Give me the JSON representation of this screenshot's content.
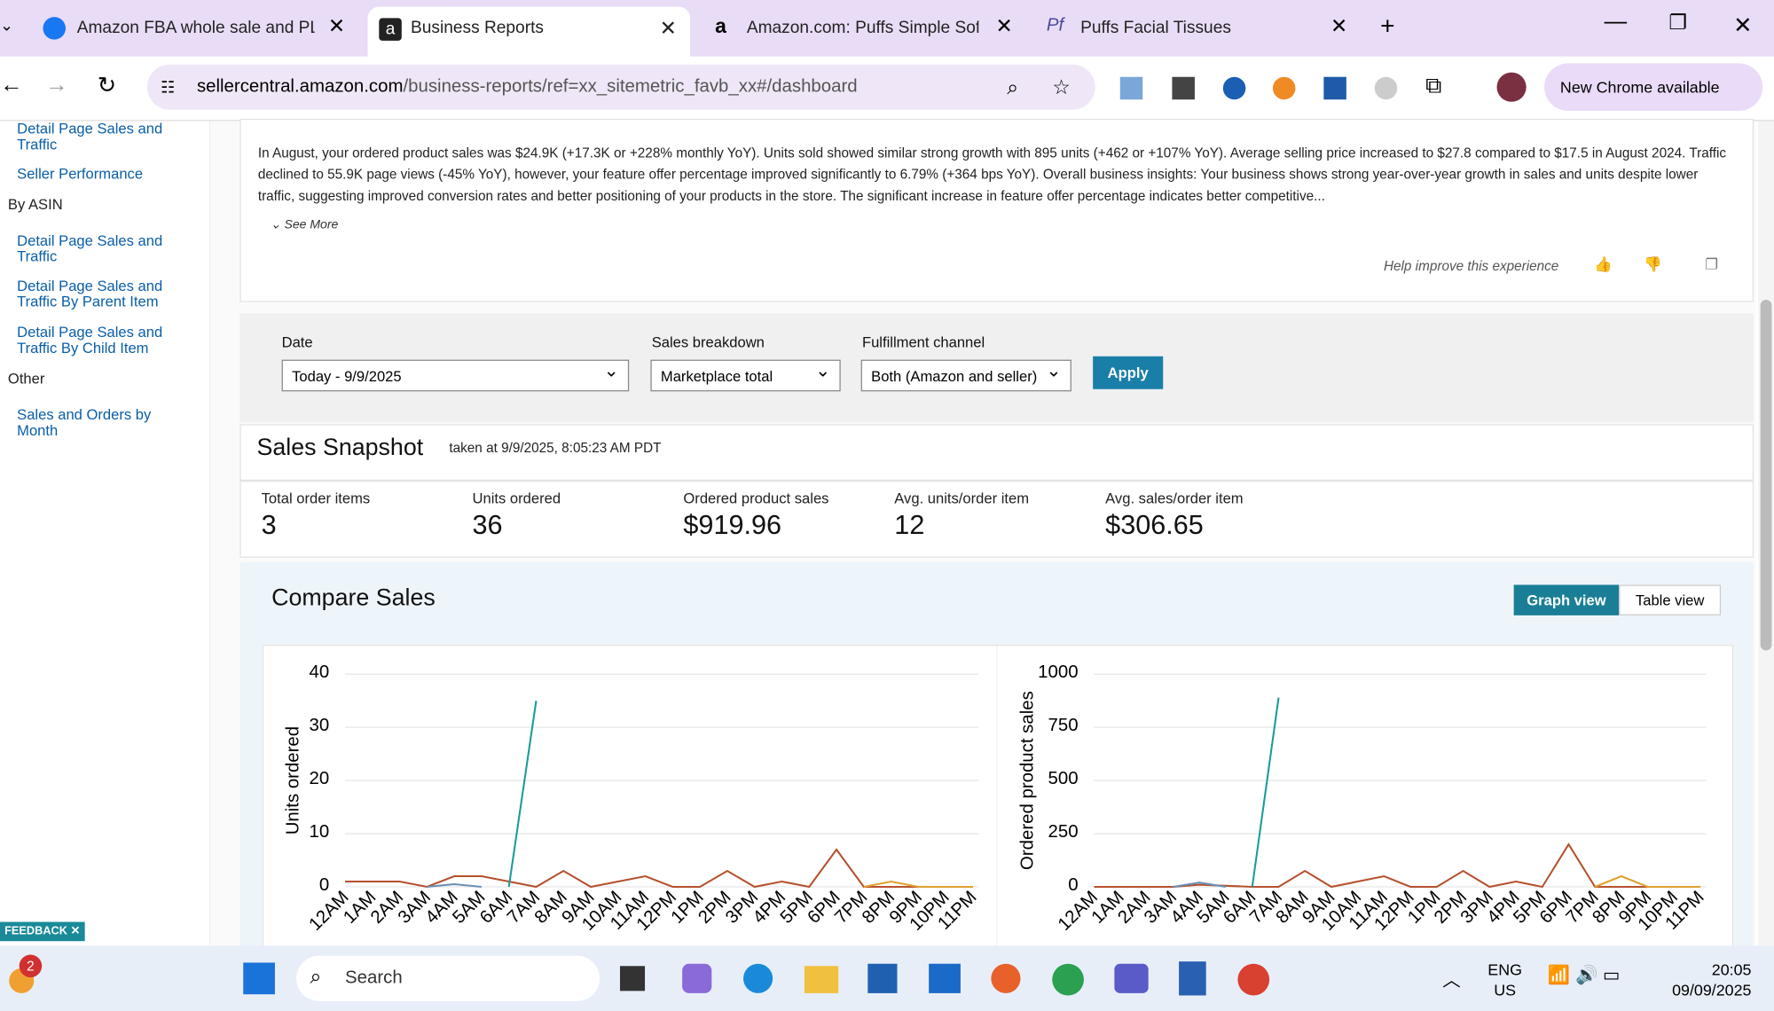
{
  "browser": {
    "tabs": [
      "Amazon FBA whole sale and PL",
      "Business Reports",
      "Amazon.com: Puffs Simple Sof",
      "Puffs Facial Tissues"
    ],
    "url_host": "sellercentral.amazon.com",
    "url_path": "/business-reports/ref=xx_sitemetric_favb_xx#/dashboard",
    "update": "New Chrome available"
  },
  "sidebar": {
    "top_items": [
      "Detail Page Sales and Traffic",
      "Seller Performance"
    ],
    "by_asin": "By ASIN",
    "asin_items": [
      "Detail Page Sales and Traffic",
      "Detail Page Sales and Traffic By Parent Item",
      "Detail Page Sales and Traffic By Child Item"
    ],
    "other": "Other",
    "other_items": [
      "Sales and Orders by Month"
    ]
  },
  "insights": {
    "text": "In August, your ordered product sales was $24.9K (+17.3K or +228% monthly YoY). Units sold showed similar strong growth with 895 units (+462 or +107% YoY). Average selling price increased to $27.8 compared to $17.5 in August 2024. Traffic declined to 55.9K page views (-45% YoY), however, your feature offer percentage improved significantly to 6.79% (+364 bps YoY). Overall business insights: Your business shows strong year-over-year growth in sales and units despite lower traffic, suggesting improved conversion rates and better positioning of your products in the store. The significant increase in feature offer percentage indicates better competitive...",
    "see_more": "See More",
    "feedback_prompt": "Help improve this experience"
  },
  "filters": {
    "date_label": "Date",
    "date_value": "Today - 9/9/2025",
    "breakdown_label": "Sales breakdown",
    "breakdown_value": "Marketplace total",
    "channel_label": "Fulfillment channel",
    "channel_value": "Both (Amazon and seller)",
    "apply": "Apply"
  },
  "snapshot": {
    "title": "Sales Snapshot",
    "taken": "taken at 9/9/2025, 8:05:23 AM PDT",
    "metrics": [
      {
        "label": "Total order items",
        "value": "3"
      },
      {
        "label": "Units ordered",
        "value": "36"
      },
      {
        "label": "Ordered product sales",
        "value": "$919.96"
      },
      {
        "label": "Avg. units/order item",
        "value": "12"
      },
      {
        "label": "Avg. sales/order item",
        "value": "$306.65"
      }
    ]
  },
  "compare": {
    "title": "Compare Sales",
    "views": [
      "Graph view",
      "Table view"
    ]
  },
  "chart_data": [
    {
      "type": "line",
      "ylabel": "Units ordered",
      "grid": true,
      "categories": [
        "12AM",
        "1AM",
        "2AM",
        "3AM",
        "4AM",
        "5AM",
        "6AM",
        "7AM",
        "8AM",
        "9AM",
        "10AM",
        "11AM",
        "12PM",
        "1PM",
        "2PM",
        "3PM",
        "4PM",
        "5PM",
        "6PM",
        "7PM",
        "8PM",
        "9PM",
        "10PM",
        "11PM"
      ],
      "ylim": [
        0,
        40
      ],
      "yticks": [
        0,
        10,
        20,
        30,
        40
      ],
      "series": [
        {
          "color": "#b5502c",
          "values": [
            1,
            1,
            1,
            0,
            2,
            2,
            1,
            0,
            3,
            0,
            1,
            2,
            0,
            0,
            3,
            0,
            1,
            0,
            7,
            0,
            0,
            0,
            0,
            0
          ]
        },
        {
          "color": "#e0a030",
          "values": [
            null,
            null,
            null,
            null,
            null,
            null,
            null,
            null,
            null,
            null,
            null,
            null,
            null,
            null,
            null,
            null,
            null,
            null,
            null,
            0,
            1,
            0,
            0,
            0
          ]
        },
        {
          "color": "#6a8fb5",
          "values": [
            null,
            null,
            null,
            0,
            0.5,
            0,
            null,
            null,
            null,
            null,
            null,
            null,
            null,
            null,
            null,
            null,
            null,
            null,
            null,
            null,
            null,
            null,
            null,
            null
          ]
        },
        {
          "color": "#1a9a9a",
          "values": [
            null,
            null,
            null,
            null,
            null,
            null,
            0,
            35,
            null,
            null,
            null,
            null,
            null,
            null,
            null,
            null,
            null,
            null,
            null,
            null,
            null,
            null,
            null,
            null
          ]
        }
      ]
    },
    {
      "type": "line",
      "ylabel": "Ordered product sales",
      "grid": true,
      "categories": [
        "12AM",
        "1AM",
        "2AM",
        "3AM",
        "4AM",
        "5AM",
        "6AM",
        "7AM",
        "8AM",
        "9AM",
        "10AM",
        "11AM",
        "12PM",
        "1PM",
        "2PM",
        "3PM",
        "4PM",
        "5PM",
        "6PM",
        "7PM",
        "8PM",
        "9PM",
        "10PM",
        "11PM"
      ],
      "ylim": [
        0,
        1000
      ],
      "yticks": [
        0,
        250,
        500,
        750,
        1000
      ],
      "series": [
        {
          "color": "#b5502c",
          "values": [
            0,
            0,
            0,
            0,
            10,
            5,
            0,
            0,
            75,
            0,
            25,
            50,
            0,
            0,
            75,
            0,
            25,
            0,
            200,
            0,
            0,
            0,
            0,
            0
          ]
        },
        {
          "color": "#e0a030",
          "values": [
            null,
            null,
            null,
            null,
            null,
            null,
            null,
            null,
            null,
            null,
            null,
            null,
            null,
            null,
            null,
            null,
            null,
            null,
            null,
            0,
            50,
            0,
            0,
            0
          ]
        },
        {
          "color": "#6a8fb5",
          "values": [
            null,
            null,
            null,
            0,
            20,
            0,
            null,
            null,
            null,
            null,
            null,
            null,
            null,
            null,
            null,
            null,
            null,
            null,
            null,
            null,
            null,
            null,
            null,
            null
          ]
        },
        {
          "color": "#1a9a9a",
          "values": [
            null,
            null,
            null,
            null,
            null,
            null,
            0,
            890,
            null,
            null,
            null,
            null,
            null,
            null,
            null,
            null,
            null,
            null,
            null,
            null,
            null,
            null,
            null,
            null
          ]
        }
      ]
    }
  ],
  "feedback": "FEEDBACK",
  "taskbar": {
    "badge": "2",
    "search": "Search",
    "lang": "ENG",
    "region": "US",
    "time": "20:05",
    "date": "09/09/2025"
  }
}
